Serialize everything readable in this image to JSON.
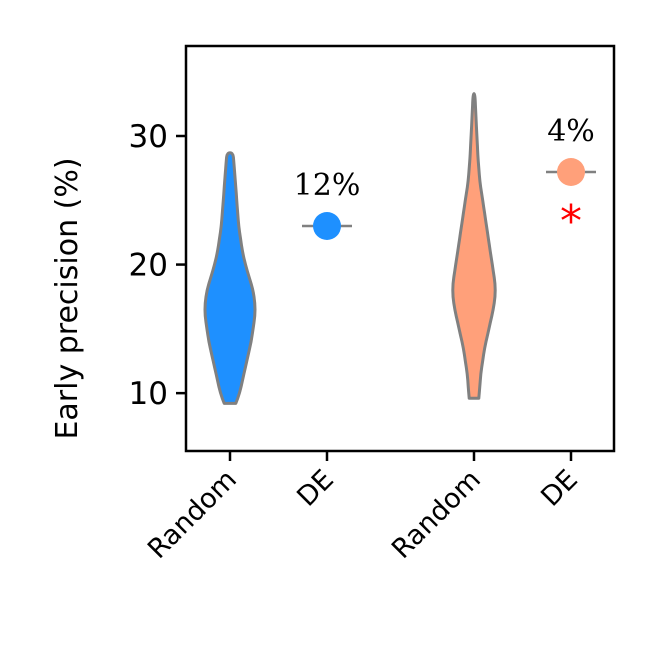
{
  "chart_data": {
    "type": "violin",
    "ylabel": "Early precision (%)",
    "ylim": [
      5.5,
      37
    ],
    "yticks": [
      10,
      20,
      30
    ],
    "categories": [
      "Random",
      "DE",
      "Random",
      "DE"
    ],
    "colors": {
      "blue": "#1e90ff",
      "salmon": "#ffa07a",
      "outline": "#808080",
      "star": "#ff0000"
    },
    "violins": [
      {
        "category_index": 0,
        "color": "#1e90ff",
        "min": 9.2,
        "max": 28.7,
        "profile": [
          [
            9.2,
            0.06
          ],
          [
            10,
            0.1
          ],
          [
            11,
            0.13
          ],
          [
            12,
            0.16
          ],
          [
            13,
            0.19
          ],
          [
            14,
            0.22
          ],
          [
            15,
            0.24
          ],
          [
            16,
            0.26
          ],
          [
            17,
            0.26
          ],
          [
            18,
            0.24
          ],
          [
            19,
            0.2
          ],
          [
            20,
            0.16
          ],
          [
            21,
            0.13
          ],
          [
            22,
            0.11
          ],
          [
            23,
            0.09
          ],
          [
            24,
            0.08
          ],
          [
            25,
            0.07
          ],
          [
            26,
            0.06
          ],
          [
            27,
            0.05
          ],
          [
            28,
            0.04
          ],
          [
            28.7,
            0.03
          ]
        ]
      },
      {
        "category_index": 2,
        "color": "#ffa07a",
        "min": 9.6,
        "max": 33.3,
        "profile": [
          [
            9.6,
            0.05
          ],
          [
            10.5,
            0.06
          ],
          [
            11.5,
            0.07
          ],
          [
            12.5,
            0.09
          ],
          [
            13.5,
            0.11
          ],
          [
            14.5,
            0.14
          ],
          [
            15.5,
            0.17
          ],
          [
            16.5,
            0.2
          ],
          [
            17.5,
            0.22
          ],
          [
            18.5,
            0.22
          ],
          [
            19.5,
            0.2
          ],
          [
            20.5,
            0.18
          ],
          [
            21.5,
            0.16
          ],
          [
            22.5,
            0.14
          ],
          [
            23.5,
            0.12
          ],
          [
            24.5,
            0.1
          ],
          [
            25.5,
            0.08
          ],
          [
            26.5,
            0.06
          ],
          [
            27.5,
            0.05
          ],
          [
            28.5,
            0.04
          ],
          [
            30,
            0.03
          ],
          [
            31.5,
            0.02
          ],
          [
            33.3,
            0.01
          ]
        ]
      }
    ],
    "points": [
      {
        "category_index": 1,
        "value": 23.0,
        "color": "#1e90ff",
        "annotation": "12%",
        "significant": false
      },
      {
        "category_index": 3,
        "value": 27.2,
        "color": "#ffa07a",
        "annotation": "4%",
        "significant": true
      }
    ],
    "significance_marker": "*"
  }
}
